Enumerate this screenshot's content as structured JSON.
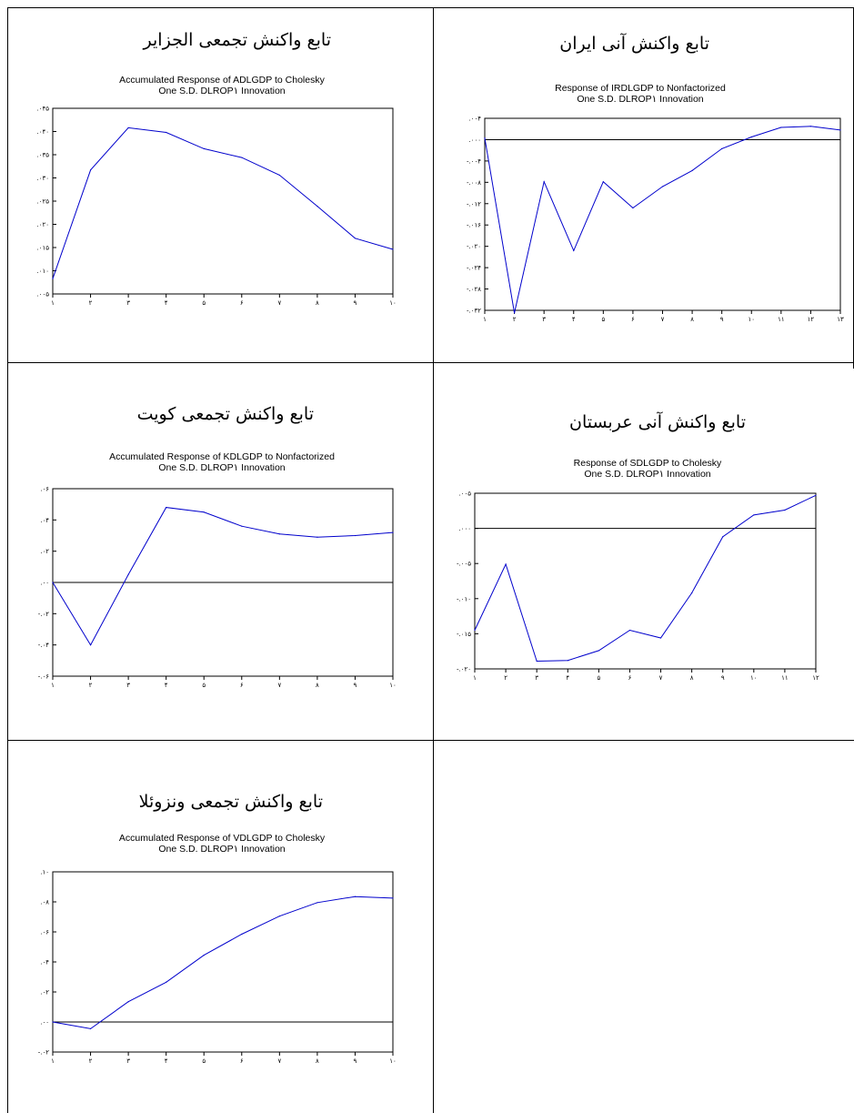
{
  "cells": [
    {
      "id": "algeria",
      "heading": "تابع واکنش تجمعی الجزایر",
      "chart_data": {
        "type": "line",
        "title": "Accumulated Response of ADLGDP to Cholesky",
        "subtitle": "One S.D. DLROP١ Innovation",
        "x_tick_labels": [
          "١",
          "٢",
          "٣",
          "۴",
          "۵",
          "۶",
          "٧",
          "٨",
          "٩",
          "١٠"
        ],
        "x": [
          1,
          2,
          3,
          4,
          5,
          6,
          7,
          8,
          9,
          10
        ],
        "y_ticks": [
          0.005,
          0.01,
          0.015,
          0.02,
          0.025,
          0.03,
          0.035,
          0.04,
          0.045
        ],
        "y_tick_labels": [
          ".٠٠۵",
          ".٠١٠",
          ".٠١۵",
          ".٠٢٠",
          ".٠٢۵",
          ".٠٣٠",
          ".٠٣۵",
          ".٠۴٠",
          ".٠۴۵"
        ],
        "ylim": [
          0.005,
          0.045
        ],
        "zero_line": false,
        "series": [
          {
            "values": [
              0.0083,
              0.0317,
              0.0408,
              0.0398,
              0.0363,
              0.0344,
              0.0306,
              0.0239,
              0.017,
              0.0146
            ],
            "color": "#0000cc"
          }
        ]
      }
    },
    {
      "id": "iran",
      "heading": "تابع واکنش آنی ایران",
      "chart_data": {
        "type": "line",
        "title": "Response of IRDLGDP to Nonfactorized",
        "subtitle": "One S.D. DLROP١ Innovation",
        "x_tick_labels": [
          "١",
          "٢",
          "٣",
          "۴",
          "۵",
          "۶",
          "٧",
          "٨",
          "٩",
          "١٠",
          "١١",
          "١٢",
          "١٣"
        ],
        "x": [
          1,
          2,
          3,
          4,
          5,
          6,
          7,
          8,
          9,
          10,
          11,
          12,
          13
        ],
        "y_ticks": [
          -0.032,
          -0.028,
          -0.024,
          -0.02,
          -0.016,
          -0.012,
          -0.008,
          -0.004,
          0.0,
          0.004
        ],
        "y_tick_labels": [
          "-.٠٣٢",
          "-.٠٢٨",
          "-.٠٢۴",
          "-.٠٢٠",
          "-.٠١۶",
          "-.٠١٢",
          "-.٠٠٨",
          "-.٠٠۴",
          ".٠٠٠",
          ".٠٠۴"
        ],
        "ylim": [
          -0.032,
          0.004
        ],
        "zero_line": true,
        "series": [
          {
            "values": [
              0.0003,
              -0.0325,
              -0.0079,
              -0.0208,
              -0.0079,
              -0.0128,
              -0.0088,
              -0.0058,
              -0.0017,
              0.0005,
              0.0023,
              0.0025,
              0.0018
            ],
            "color": "#0000cc"
          }
        ]
      }
    },
    {
      "id": "kuwait",
      "heading": "تابع واکنش تجمعی کویت",
      "chart_data": {
        "type": "line",
        "title": "Accumulated Response of KDLGDP to Nonfactorized",
        "subtitle": "One S.D. DLROP١ Innovation",
        "x_tick_labels": [
          "١",
          "٢",
          "٣",
          "۴",
          "۵",
          "۶",
          "٧",
          "٨",
          "٩",
          "١٠"
        ],
        "x": [
          1,
          2,
          3,
          4,
          5,
          6,
          7,
          8,
          9,
          10
        ],
        "y_ticks": [
          -0.06,
          -0.04,
          -0.02,
          0.0,
          0.02,
          0.04,
          0.06
        ],
        "y_tick_labels": [
          "-.٠۶",
          "-.٠۴",
          "-.٠٢",
          ".٠٠",
          ".٠٢",
          ".٠۴",
          ".٠۶"
        ],
        "ylim": [
          -0.06,
          0.06
        ],
        "zero_line": true,
        "series": [
          {
            "values": [
              0.0,
              -0.04,
              0.005,
              0.048,
              0.045,
              0.036,
              0.031,
              0.029,
              0.03,
              0.032
            ],
            "color": "#0000cc"
          }
        ]
      }
    },
    {
      "id": "saudi",
      "heading": "تابع واکنش آنی عربستان",
      "chart_data": {
        "type": "line",
        "title": "Response of SDLGDP to Cholesky",
        "subtitle": "One S.D. DLROP١ Innovation",
        "x_tick_labels": [
          "١",
          "٢",
          "٣",
          "۴",
          "۵",
          "۶",
          "٧",
          "٨",
          "٩",
          "١٠",
          "١١",
          "١٢"
        ],
        "x": [
          1,
          2,
          3,
          4,
          5,
          6,
          7,
          8,
          9,
          10,
          11,
          12
        ],
        "y_ticks": [
          -0.02,
          -0.015,
          -0.01,
          -0.005,
          0.0,
          0.005
        ],
        "y_tick_labels": [
          "-.٠٢٠",
          "-.٠١۵",
          "-.٠١٠",
          "-.٠٠۵",
          ".٠٠٠",
          ".٠٠۵"
        ],
        "ylim": [
          -0.02,
          0.005
        ],
        "zero_line": true,
        "series": [
          {
            "values": [
              -0.0145,
              -0.0051,
              -0.0189,
              -0.0188,
              -0.0174,
              -0.0145,
              -0.0156,
              -0.0092,
              -0.0012,
              0.0019,
              0.0026,
              0.0047
            ],
            "color": "#0000cc"
          }
        ]
      }
    },
    {
      "id": "venezuela",
      "heading": "تابع واکنش تجمعی ونزوئلا",
      "chart_data": {
        "type": "line",
        "title": "Accumulated Response of VDLGDP to Cholesky",
        "subtitle": "One S.D. DLROP١ Innovation",
        "x_tick_labels": [
          "١",
          "٢",
          "٣",
          "۴",
          "۵",
          "۶",
          "٧",
          "٨",
          "٩",
          "١٠"
        ],
        "x": [
          1,
          2,
          3,
          4,
          5,
          6,
          7,
          8,
          9,
          10
        ],
        "y_ticks": [
          -0.02,
          0.0,
          0.02,
          0.04,
          0.06,
          0.08,
          0.1
        ],
        "y_tick_labels": [
          "-.٠٢",
          ".٠٠",
          ".٠٢",
          ".٠۴",
          ".٠۶",
          ".٠٨",
          ".١٠"
        ],
        "ylim": [
          -0.02,
          0.1
        ],
        "zero_line": true,
        "series": [
          {
            "values": [
              0.0,
              -0.0045,
              0.0135,
              0.0265,
              0.0445,
              0.0585,
              0.0705,
              0.0795,
              0.0835,
              0.0825
            ],
            "color": "#0000cc"
          }
        ]
      }
    }
  ]
}
